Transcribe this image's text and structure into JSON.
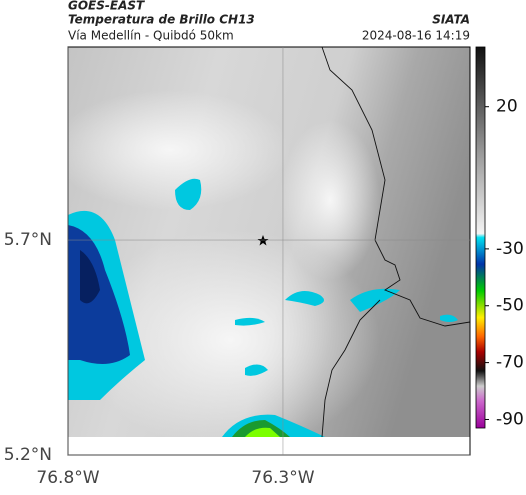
{
  "header": {
    "satellite": "GOES-EAST",
    "title": "Temperatura de Brillo CH13",
    "source": "SIATA",
    "subtitle": "Vía Medellín - Quibdó 50km",
    "datetime": "2024-08-16 14:19"
  },
  "map": {
    "xlim": [
      -76.8,
      -75.865
    ],
    "ylim": [
      5.2,
      6.149
    ],
    "xticks": [
      {
        "value": -76.8,
        "label": "76.8°W"
      },
      {
        "value": -76.3,
        "label": "76.3°W"
      }
    ],
    "yticks": [
      {
        "value": 5.7,
        "label": "5.7°N"
      },
      {
        "value": 5.2,
        "label": "5.2°N"
      }
    ]
  },
  "colorbar": {
    "lim": [
      41,
      -93
    ],
    "ticks": [
      20,
      -30,
      -50,
      -70,
      -90
    ]
  }
}
